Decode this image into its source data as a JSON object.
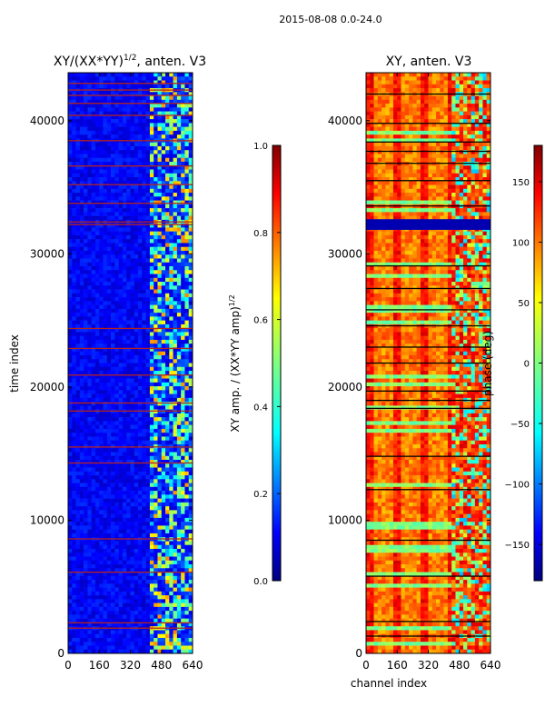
{
  "suptitle": "2015-08-08 0.0-24.0",
  "colors": {
    "jet": [
      "#00007f",
      "#0000ff",
      "#007fff",
      "#00ffff",
      "#7fff7f",
      "#ffff00",
      "#ff7f00",
      "#ff0000",
      "#7f0000"
    ],
    "hot_row": "#b4231e",
    "black_row": "#000000",
    "frame": "#000000"
  },
  "chart_data": [
    {
      "type": "heatmap",
      "title": "XY/(XX*YY)^{1/2}, anten. V3",
      "title_main": "XY/(XX*YY)",
      "title_sup": "1/2",
      "title_tail": ", anten. V3",
      "xlabel": "",
      "ylabel": "time index",
      "xlim": [
        0,
        640
      ],
      "ylim": [
        0,
        43600
      ],
      "xticks": [
        0,
        160,
        320,
        480,
        640
      ],
      "yticks": [
        0,
        10000,
        20000,
        30000,
        40000
      ],
      "xtick_labels": [
        "0",
        "160",
        "320",
        "480",
        "640"
      ],
      "ytick_labels": [
        "0",
        "10000",
        "20000",
        "30000",
        "40000"
      ],
      "colorbar": {
        "label": "XY amp. / (XX*YY amp)^{1/2}",
        "label_main": "XY amp. / (XX*YY amp)",
        "label_sup": "1/2",
        "range": [
          0.0,
          1.0
        ],
        "ticks": [
          0.0,
          0.2,
          0.4,
          0.6,
          0.8,
          1.0
        ],
        "tick_labels": [
          "0.0",
          "0.2",
          "0.4",
          "0.6",
          "0.8",
          "1.0"
        ]
      },
      "high_value_channel_range": [
        410,
        640
      ],
      "flagged_rows": [
        1900,
        2300,
        6100,
        8600,
        14300,
        15500,
        18200,
        18800,
        20900,
        22900,
        24400,
        32200,
        32400,
        33800,
        35200,
        36600,
        38500,
        40400,
        41300,
        41900,
        42300,
        42800
      ]
    },
    {
      "type": "heatmap",
      "title": "XY, anten. V3",
      "xlabel": "channel index",
      "ylabel": "",
      "xlim": [
        0,
        640
      ],
      "ylim": [
        0,
        43600
      ],
      "xticks": [
        0,
        160,
        320,
        480,
        640
      ],
      "yticks": [
        0,
        10000,
        20000,
        30000,
        40000
      ],
      "xtick_labels": [
        "0",
        "160",
        "320",
        "480",
        "640"
      ],
      "ytick_labels": [
        "0",
        "10000",
        "20000",
        "30000",
        "40000"
      ],
      "colorbar": {
        "label": "phase (deg)",
        "range": [
          -180,
          180
        ],
        "ticks": [
          -150,
          -100,
          -50,
          0,
          50,
          100,
          150
        ],
        "tick_labels": [
          "−150",
          "−100",
          "−50",
          "0",
          "50",
          "100",
          "150"
        ]
      },
      "dark_band_rows": [
        31800,
        32600
      ],
      "black_rows": [
        1300,
        2400,
        5800,
        8500,
        12300,
        14800,
        18400,
        19000,
        19700,
        21800,
        23000,
        24600,
        25800,
        27400,
        29100,
        33600,
        35500,
        36800,
        37700,
        38400,
        39800,
        42000
      ]
    }
  ]
}
